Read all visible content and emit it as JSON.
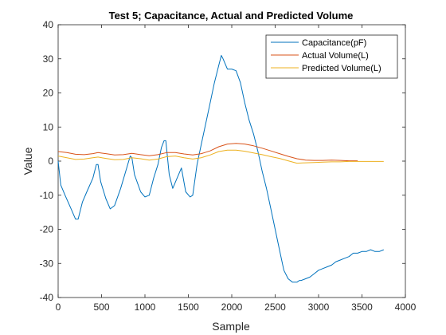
{
  "chart_data": {
    "type": "line",
    "title": "Test 5; Capacitance, Actual and Predicted Volume",
    "xlabel": "Sample",
    "ylabel": "Value",
    "xlim": [
      0,
      4000
    ],
    "ylim": [
      -40,
      40
    ],
    "xticks": [
      0,
      500,
      1000,
      1500,
      2000,
      2500,
      3000,
      3500,
      4000
    ],
    "yticks": [
      -40,
      -30,
      -20,
      -10,
      0,
      10,
      20,
      30,
      40
    ],
    "grid": false,
    "legend_position": "top-right",
    "series": [
      {
        "name": "Capacitance(pF)",
        "color": "#0072BD",
        "x": [
          0,
          30,
          80,
          150,
          200,
          230,
          280,
          330,
          400,
          440,
          460,
          490,
          550,
          600,
          650,
          720,
          790,
          830,
          850,
          880,
          950,
          1000,
          1050,
          1100,
          1150,
          1190,
          1220,
          1240,
          1280,
          1320,
          1370,
          1420,
          1470,
          1520,
          1550,
          1600,
          1650,
          1700,
          1750,
          1800,
          1850,
          1880,
          1900,
          1950,
          2000,
          2050,
          2100,
          2150,
          2200,
          2250,
          2300,
          2350,
          2400,
          2450,
          2500,
          2550,
          2600,
          2650,
          2700,
          2750,
          2780,
          2800,
          2850,
          2900,
          2950,
          3000,
          3050,
          3100,
          3150,
          3200,
          3250,
          3300,
          3350,
          3400,
          3450,
          3500,
          3550,
          3600,
          3650,
          3700,
          3750
        ],
        "y": [
          0,
          -7,
          -10,
          -14,
          -17,
          -17,
          -12,
          -9,
          -5,
          -1,
          -1,
          -6,
          -11,
          -14,
          -13,
          -8,
          -2,
          1.5,
          1,
          -4,
          -9,
          -10.5,
          -10,
          -5,
          -1,
          4,
          6,
          6,
          -4,
          -8,
          -5,
          -2,
          -9,
          -10.5,
          -10,
          -1,
          5,
          11,
          17,
          23,
          28,
          31,
          30,
          27,
          27,
          26.5,
          23,
          17,
          12,
          8,
          3,
          -3,
          -8,
          -14,
          -20,
          -26,
          -32,
          -34.5,
          -35.5,
          -35.5,
          -35,
          -35,
          -34.5,
          -34,
          -33,
          -32,
          -31.5,
          -31,
          -30.5,
          -29.5,
          -29,
          -28.5,
          -28,
          -27,
          -27,
          -26.5,
          -26.5,
          -26,
          -26.5,
          -26.5,
          -26
        ]
      },
      {
        "name": "Actual Volume(L)",
        "color": "#D95319",
        "x": [
          0,
          100,
          200,
          300,
          400,
          460,
          550,
          650,
          750,
          850,
          950,
          1050,
          1150,
          1250,
          1350,
          1450,
          1550,
          1650,
          1750,
          1850,
          1950,
          2050,
          2150,
          2250,
          2350,
          2450,
          2550,
          2650,
          2750,
          2850,
          2950,
          3050,
          3150,
          3250,
          3350,
          3450
        ],
        "y": [
          2.8,
          2.5,
          2.0,
          1.9,
          2.2,
          2.5,
          2.2,
          1.8,
          1.9,
          2.3,
          1.9,
          1.6,
          1.9,
          2.5,
          2.5,
          2.1,
          1.8,
          2.2,
          3.0,
          4.2,
          5.0,
          5.2,
          5.0,
          4.5,
          3.8,
          3.0,
          2.2,
          1.4,
          0.7,
          0.3,
          0.2,
          0.2,
          0.3,
          0.2,
          0.1,
          0.1
        ]
      },
      {
        "name": "Predicted Volume(L)",
        "color": "#EDB120",
        "x": [
          0,
          100,
          200,
          300,
          400,
          460,
          550,
          650,
          750,
          850,
          950,
          1050,
          1150,
          1250,
          1350,
          1450,
          1550,
          1650,
          1750,
          1850,
          1950,
          2050,
          2150,
          2250,
          2350,
          2450,
          2550,
          2650,
          2750,
          2850,
          2950,
          3050,
          3150,
          3250,
          3350,
          3450,
          3550,
          3650,
          3750
        ],
        "y": [
          1.5,
          1.0,
          0.5,
          0.6,
          1.0,
          1.2,
          0.8,
          0.4,
          0.5,
          1.0,
          0.7,
          0.3,
          0.6,
          1.3,
          1.5,
          1.0,
          0.6,
          1.0,
          1.8,
          2.8,
          3.2,
          3.2,
          2.9,
          2.4,
          1.9,
          1.3,
          0.8,
          0.1,
          -0.6,
          -0.5,
          -0.4,
          -0.3,
          -0.2,
          -0.2,
          -0.1,
          -0.1,
          -0.1,
          -0.1,
          -0.1
        ]
      }
    ]
  }
}
